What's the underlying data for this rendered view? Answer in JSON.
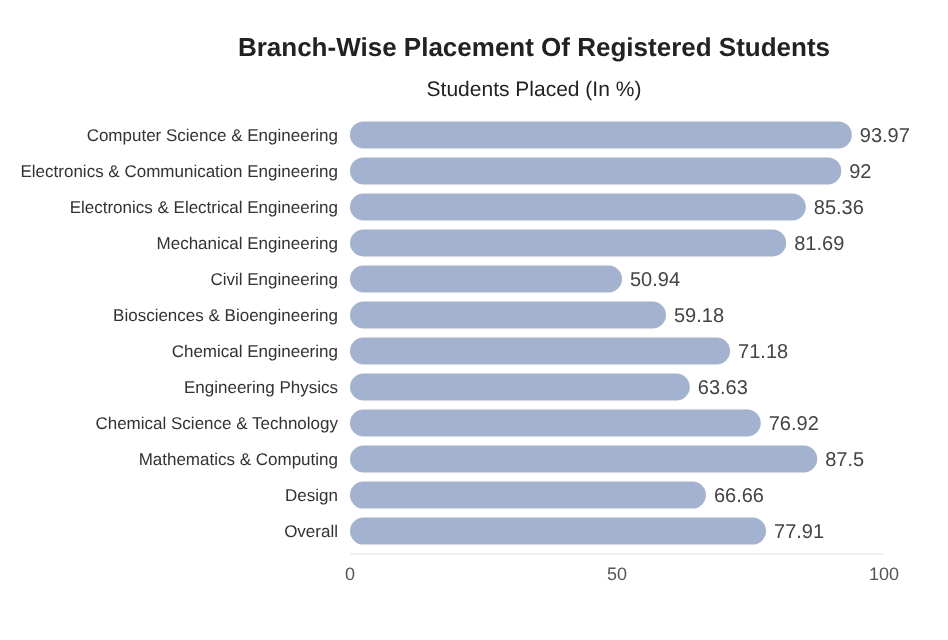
{
  "chart_data": {
    "type": "bar",
    "orientation": "horizontal",
    "title": "Branch-Wise Placement Of Registered Students",
    "subtitle": "Students Placed (In %)",
    "categories": [
      "Computer Science & Engineering",
      "Electronics & Communication Engineering",
      "Electronics & Electrical Engineering",
      "Mechanical Engineering",
      "Civil Engineering",
      "Biosciences & Bioengineering",
      "Chemical Engineering",
      "Engineering Physics",
      "Chemical Science & Technology",
      "Mathematics & Computing",
      "Design",
      "Overall"
    ],
    "values": [
      93.97,
      92,
      85.36,
      81.69,
      50.94,
      59.18,
      71.18,
      63.63,
      76.92,
      87.5,
      66.66,
      77.91
    ],
    "color": "#a3b3cf",
    "xlim": [
      0,
      100
    ],
    "xticks": [
      0,
      50,
      100
    ],
    "data_labels": true
  }
}
